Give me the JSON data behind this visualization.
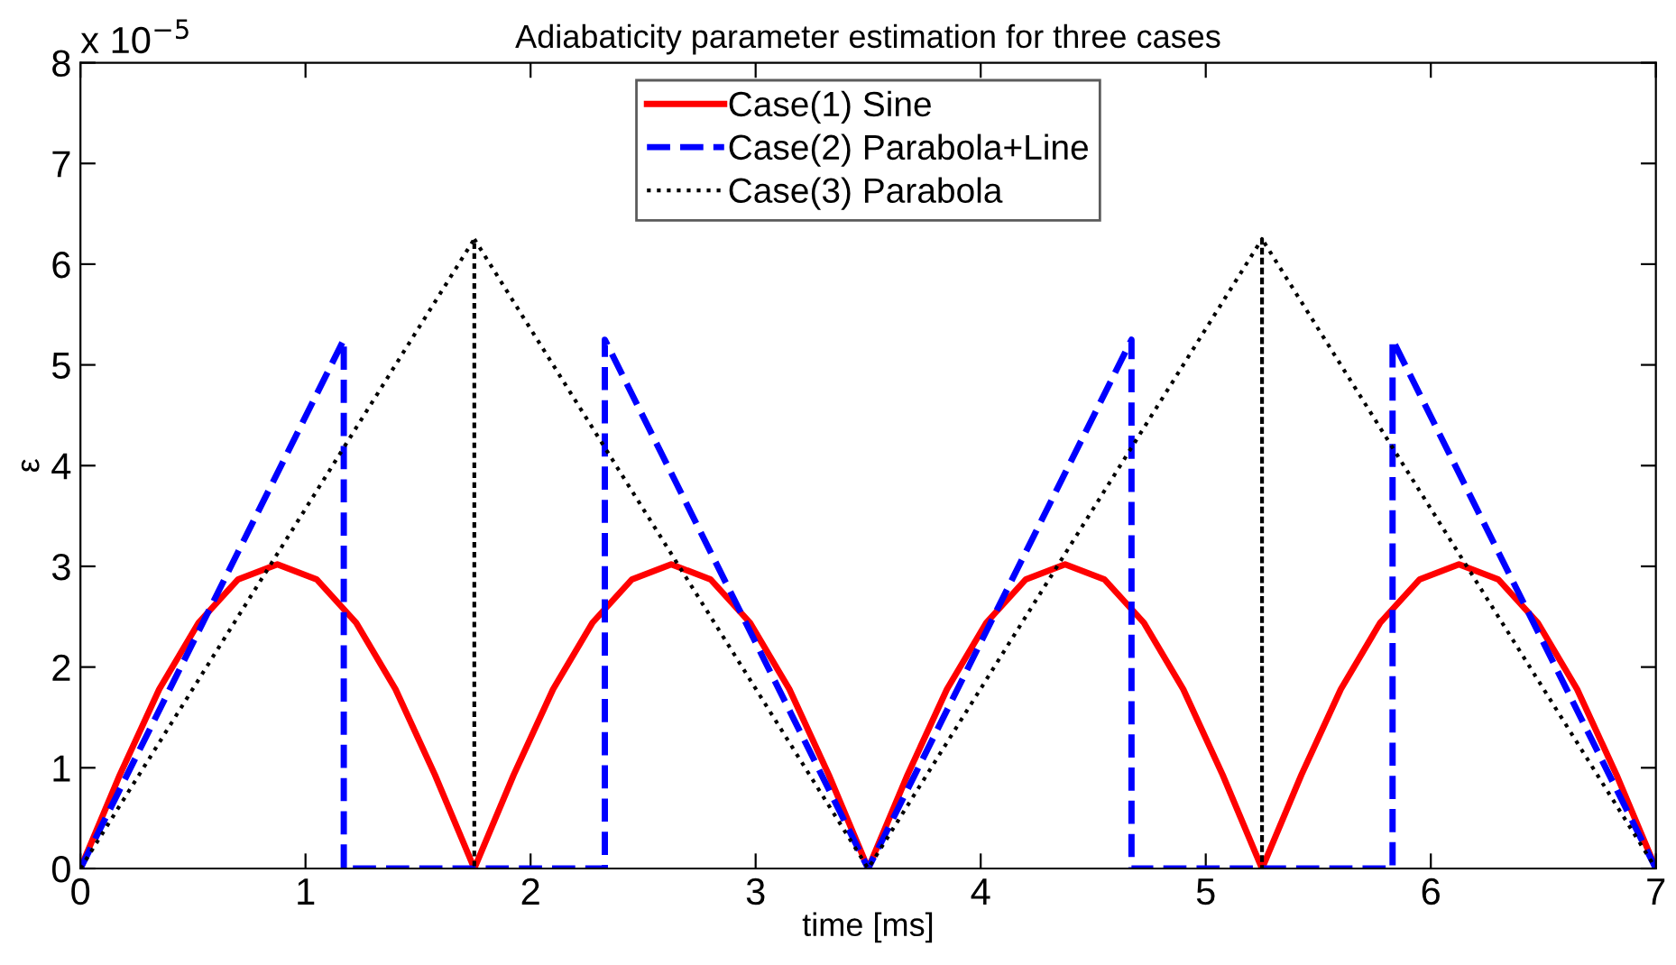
{
  "chart_data": {
    "type": "line",
    "title": "Adiabaticity parameter estimation for three cases",
    "xlabel": "time [ms]",
    "ylabel": "ε",
    "annotations": [
      "x 10$^{−5}$"
    ],
    "xlim": [
      0,
      7
    ],
    "xticks": [
      0,
      1,
      2,
      3,
      4,
      5,
      6,
      7
    ],
    "ylim": [
      0,
      8
    ],
    "yticks": [
      0,
      1,
      2,
      3,
      4,
      5,
      6,
      7,
      8
    ],
    "grid": false,
    "legend": "top",
    "series": [
      {
        "name": "Case(1) Sine",
        "color": "#ff0000",
        "line_style": "solid",
        "x": [
          0,
          0.175,
          0.35,
          0.525,
          0.7,
          0.875,
          1.05,
          1.225,
          1.4,
          1.575,
          1.75,
          1.925,
          2.1,
          2.275,
          2.45,
          2.625,
          2.8,
          2.975,
          3.15,
          3.325,
          3.5,
          3.675,
          3.85,
          4.025,
          4.2,
          4.375,
          4.55,
          4.725,
          4.9,
          5.075,
          5.25,
          5.425,
          5.6,
          5.775,
          5.95,
          6.125,
          6.3,
          6.475,
          6.65,
          6.825,
          7
        ],
        "values": [
          0,
          0.93,
          1.78,
          2.44,
          2.87,
          3.02,
          2.87,
          2.44,
          1.78,
          0.93,
          0,
          0.93,
          1.78,
          2.44,
          2.87,
          3.02,
          2.87,
          2.44,
          1.78,
          0.93,
          0,
          0.93,
          1.78,
          2.44,
          2.87,
          3.02,
          2.87,
          2.44,
          1.78,
          0.93,
          0,
          0.93,
          1.78,
          2.44,
          2.87,
          3.02,
          2.87,
          2.44,
          1.78,
          0.93,
          0
        ]
      },
      {
        "name": "Case(2) Parabola+Line",
        "color": "#0000ff",
        "line_style": "dashed",
        "x": [
          0,
          1.17,
          1.17,
          2.33,
          2.33,
          3.5,
          4.67,
          4.67,
          5.83,
          5.83,
          7
        ],
        "values": [
          0,
          5.25,
          0,
          0,
          5.25,
          0,
          5.25,
          0,
          0,
          5.25,
          0
        ]
      },
      {
        "name": "Case(3) Parabola",
        "color": "#000000",
        "line_style": "dotted",
        "x": [
          0,
          1.75,
          1.75,
          1.75,
          3.5,
          5.25,
          5.25,
          5.25,
          7
        ],
        "values": [
          0,
          6.25,
          0,
          6.25,
          0,
          6.25,
          0,
          6.25,
          0
        ]
      }
    ]
  }
}
